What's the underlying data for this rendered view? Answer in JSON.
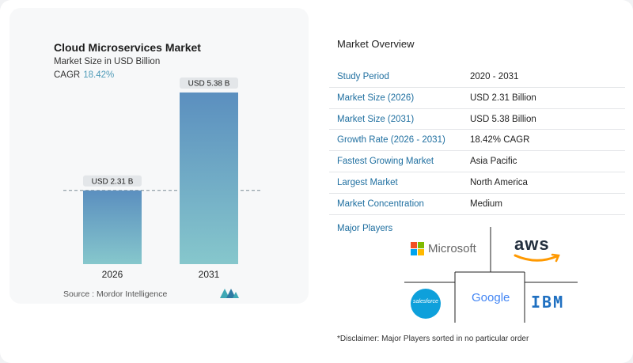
{
  "chart_data": {
    "type": "bar",
    "title": "Cloud Microservices Market",
    "subtitle": "Market Size in USD Billion",
    "cagr_label": "CAGR",
    "cagr_value": "18.42%",
    "categories": [
      "2026",
      "2031"
    ],
    "values": [
      2.31,
      5.38
    ],
    "data_labels": [
      "USD 2.31 B",
      "USD 5.38 B"
    ],
    "ylim": [
      0,
      5.8
    ],
    "bar_gradient_top": "#5b8fbf",
    "bar_gradient_bottom": "#86c7cc",
    "grid": false
  },
  "source": "Source : Mordor Intelligence",
  "overview": {
    "title": "Market Overview",
    "rows": [
      {
        "label": "Study Period",
        "value": "2020 - 2031"
      },
      {
        "label": "Market Size (2026)",
        "value": "USD 2.31 Billion"
      },
      {
        "label": "Market Size (2031)",
        "value": "USD 5.38 Billion"
      },
      {
        "label": "Growth Rate (2026 - 2031)",
        "value": "18.42% CAGR"
      },
      {
        "label": "Fastest Growing Market",
        "value": "Asia Pacific"
      },
      {
        "label": "Largest Market",
        "value": "North America"
      },
      {
        "label": "Market Concentration",
        "value": "Medium"
      }
    ]
  },
  "players": {
    "title": "Major Players",
    "logos": {
      "microsoft": "Microsoft",
      "aws": "aws",
      "salesforce": "salesforce",
      "google": "Google",
      "ibm": "IBM"
    }
  },
  "disclaimer": "*Disclaimer: Major Players sorted in no particular order",
  "colors": {
    "accent": "#1f6fa0",
    "cagr": "#4f9bb8"
  }
}
